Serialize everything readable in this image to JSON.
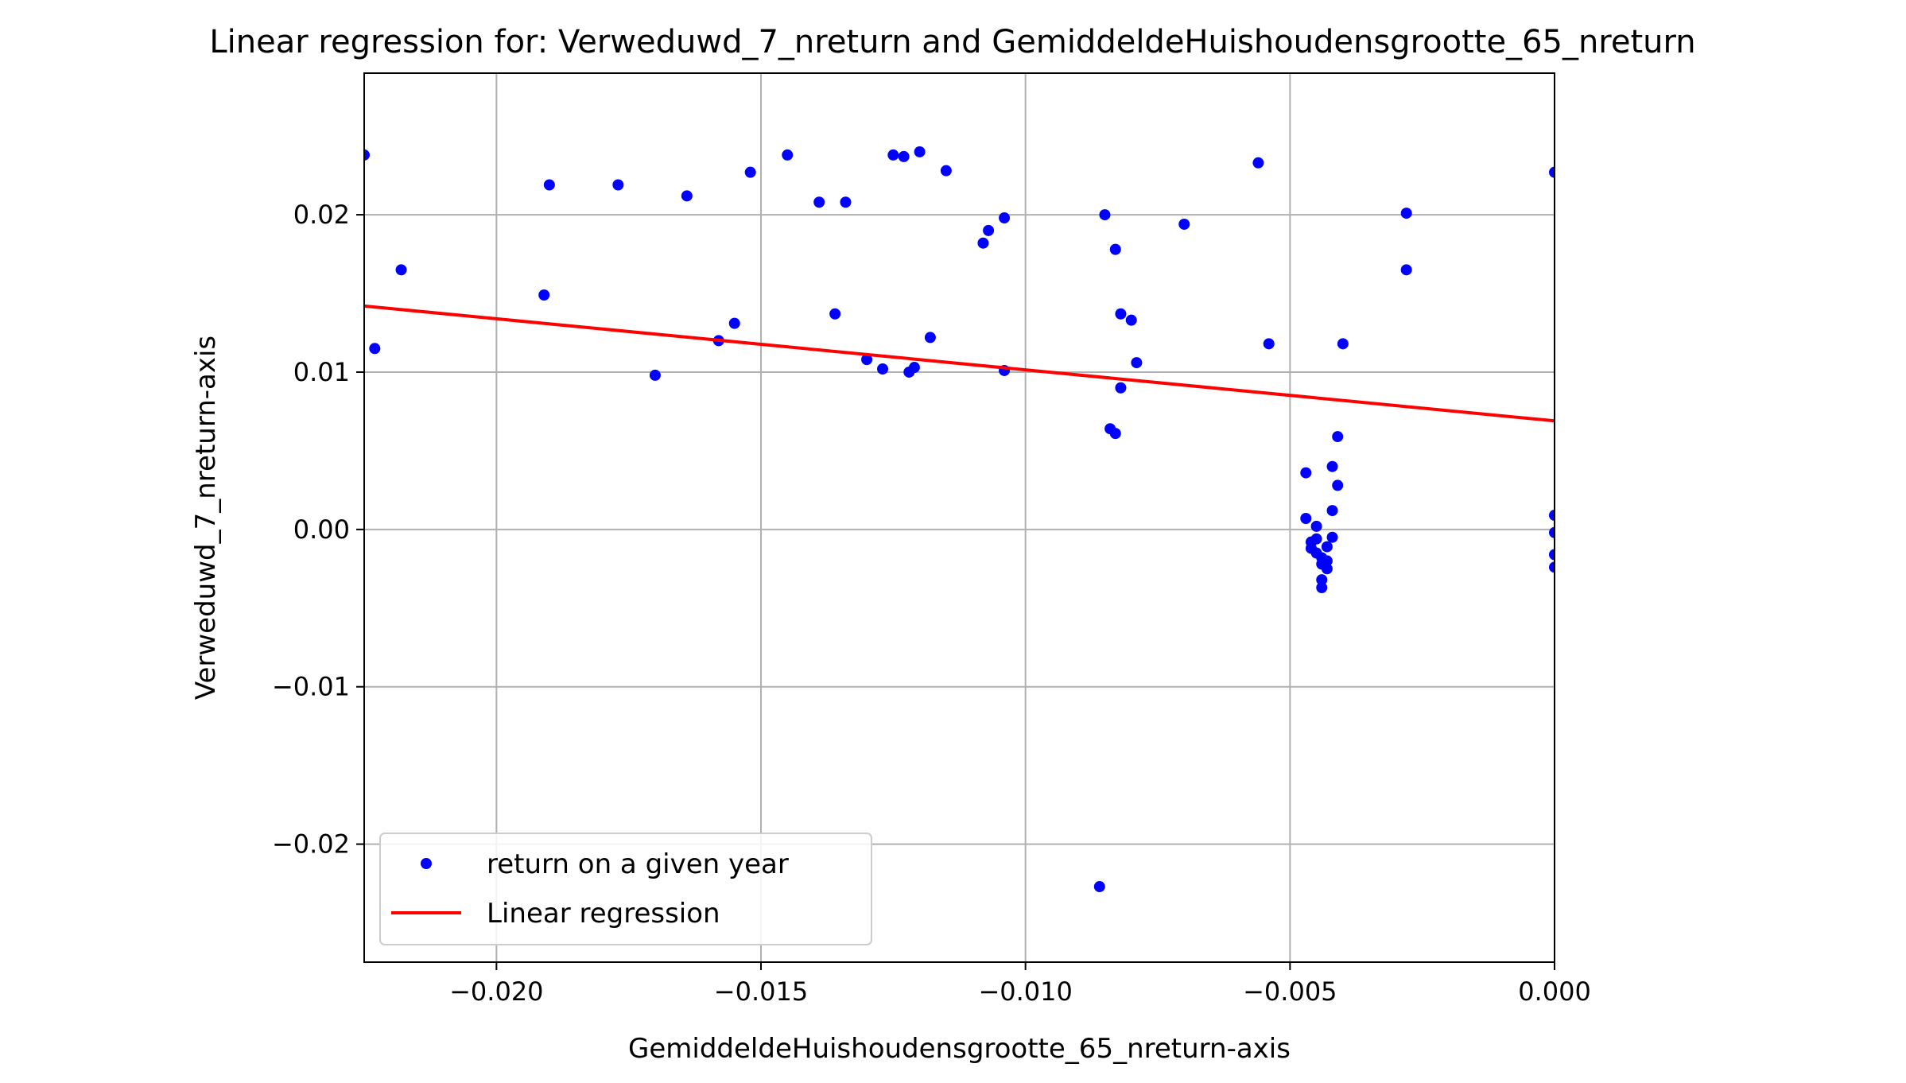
{
  "chart_data": {
    "type": "scatter",
    "title": "Linear regression for: Verweduwd_7_nreturn and GemiddeldeHuishoudensgrootte_65_nreturn",
    "xlabel": "GemiddeldeHuishoudensgrootte_65_nreturn-axis",
    "ylabel": "Verweduwd_7_nreturn-axis",
    "xlim": [
      -0.0225,
      0.0
    ],
    "ylim": [
      -0.0275,
      0.029
    ],
    "xticks": [
      -0.02,
      -0.015,
      -0.01,
      -0.005,
      0.0
    ],
    "xtick_labels": [
      "−0.020",
      "−0.015",
      "−0.010",
      "−0.005",
      "0.000"
    ],
    "yticks": [
      -0.02,
      -0.01,
      0.0,
      0.01,
      0.02
    ],
    "ytick_labels": [
      "−0.02",
      "−0.01",
      "0.00",
      "0.01",
      "0.02"
    ],
    "grid": true,
    "legend_position": "lower-left",
    "series": [
      {
        "name": "return on a given year",
        "kind": "scatter",
        "color": "#0000ff",
        "points": [
          [
            -0.0225,
            0.0238
          ],
          [
            -0.0223,
            0.0115
          ],
          [
            -0.0218,
            0.0165
          ],
          [
            -0.0191,
            0.0149
          ],
          [
            -0.019,
            0.0219
          ],
          [
            -0.0177,
            0.0219
          ],
          [
            -0.017,
            0.0098
          ],
          [
            -0.0164,
            0.0212
          ],
          [
            -0.0158,
            0.012
          ],
          [
            -0.0155,
            0.0131
          ],
          [
            -0.0152,
            0.0227
          ],
          [
            -0.0145,
            0.0238
          ],
          [
            -0.0139,
            0.0208
          ],
          [
            -0.0136,
            0.0137
          ],
          [
            -0.0134,
            0.0208
          ],
          [
            -0.013,
            0.0108
          ],
          [
            -0.0127,
            0.0102
          ],
          [
            -0.0125,
            0.0238
          ],
          [
            -0.0123,
            0.0237
          ],
          [
            -0.0122,
            0.01
          ],
          [
            -0.0121,
            0.0103
          ],
          [
            -0.012,
            0.024
          ],
          [
            -0.0118,
            0.0122
          ],
          [
            -0.0115,
            0.0228
          ],
          [
            -0.0108,
            0.0182
          ],
          [
            -0.0107,
            0.019
          ],
          [
            -0.0104,
            0.0198
          ],
          [
            -0.0104,
            0.0101
          ],
          [
            -0.0086,
            -0.0227
          ],
          [
            -0.0085,
            0.02
          ],
          [
            -0.0084,
            0.0064
          ],
          [
            -0.0083,
            0.0061
          ],
          [
            -0.0083,
            0.0178
          ],
          [
            -0.0082,
            0.0137
          ],
          [
            -0.0082,
            0.009
          ],
          [
            -0.008,
            0.0133
          ],
          [
            -0.0079,
            0.0106
          ],
          [
            -0.007,
            0.0194
          ],
          [
            -0.0056,
            0.0233
          ],
          [
            -0.0054,
            0.0118
          ],
          [
            -0.0047,
            0.0036
          ],
          [
            -0.0047,
            0.0007
          ],
          [
            -0.0046,
            -0.0008
          ],
          [
            -0.0046,
            -0.0012
          ],
          [
            -0.0045,
            0.0002
          ],
          [
            -0.0045,
            -0.0015
          ],
          [
            -0.0045,
            -0.0006
          ],
          [
            -0.0044,
            -0.0018
          ],
          [
            -0.0044,
            -0.0022
          ],
          [
            -0.0044,
            -0.0032
          ],
          [
            -0.0044,
            -0.0037
          ],
          [
            -0.0043,
            -0.002
          ],
          [
            -0.0043,
            -0.0011
          ],
          [
            -0.0043,
            -0.0025
          ],
          [
            -0.0042,
            -0.0005
          ],
          [
            -0.0042,
            0.0012
          ],
          [
            -0.0042,
            0.004
          ],
          [
            -0.0041,
            0.0028
          ],
          [
            -0.0041,
            0.0059
          ],
          [
            -0.004,
            0.0118
          ],
          [
            -0.0028,
            0.0201
          ],
          [
            -0.0028,
            0.0165
          ],
          [
            0.0,
            0.0227
          ],
          [
            0.0,
            0.0009
          ],
          [
            0.0,
            -0.0002
          ],
          [
            0.0,
            -0.0016
          ],
          [
            0.0,
            -0.0024
          ]
        ]
      },
      {
        "name": "Linear regression",
        "kind": "line",
        "color": "#ff0000",
        "points": [
          [
            -0.0225,
            0.0142
          ],
          [
            0.0,
            0.0069
          ]
        ]
      }
    ]
  }
}
